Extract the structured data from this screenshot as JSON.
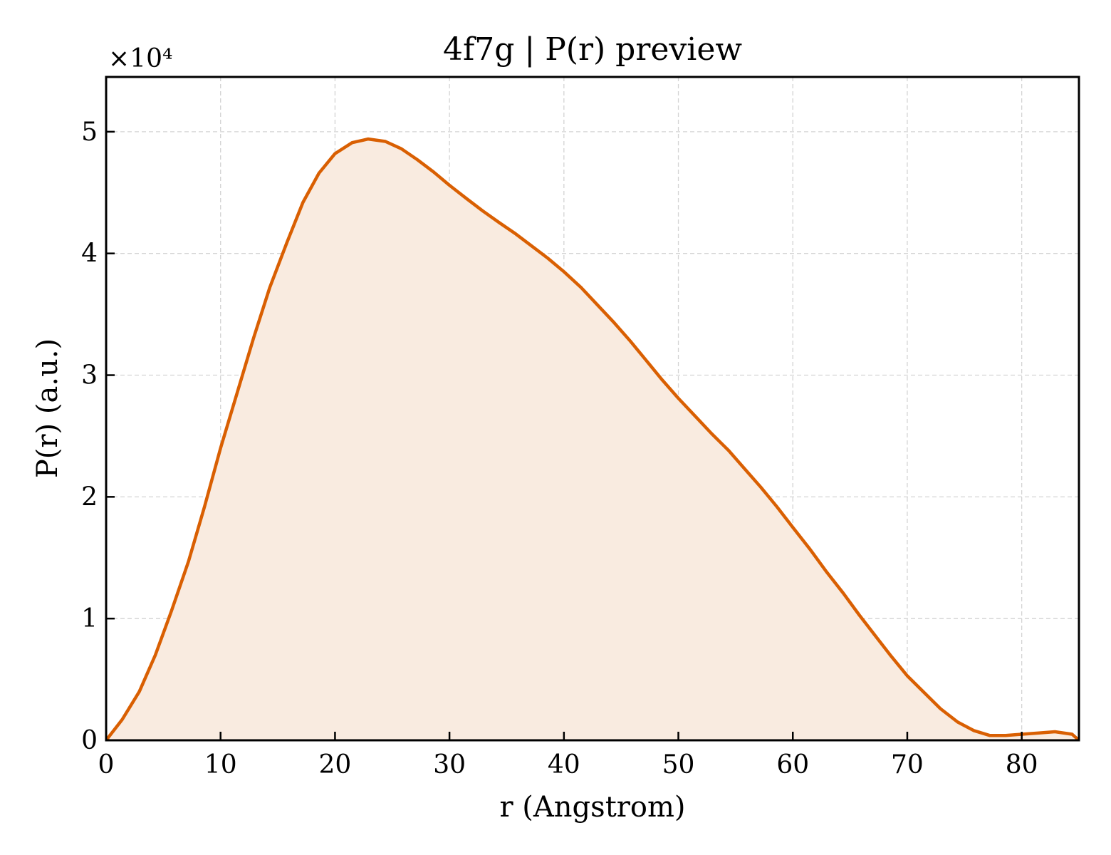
{
  "chart_data": {
    "type": "area",
    "title": "4f7g | P(r) preview",
    "xlabel": "r (Angstrom)",
    "ylabel": "P(r) (a.u.)",
    "y_multiplier": "×10⁴",
    "xlim": [
      0,
      85
    ],
    "ylim": [
      0,
      5.45
    ],
    "x_ticks": [
      0,
      10,
      20,
      30,
      40,
      50,
      60,
      70,
      80
    ],
    "y_ticks": [
      0,
      1,
      2,
      3,
      4,
      5
    ],
    "grid": true,
    "line_color": "#d95f02",
    "fill_color": "#f9ebe0",
    "series": [
      {
        "x": [
          0,
          1.4,
          2.9,
          4.3,
          5.7,
          7.2,
          8.6,
          10.0,
          11.5,
          12.9,
          14.3,
          15.8,
          17.2,
          18.6,
          20.0,
          21.5,
          22.9,
          24.4,
          25.8,
          27.2,
          28.6,
          30.0,
          31.5,
          32.9,
          34.4,
          35.8,
          37.2,
          38.6,
          40.0,
          41.5,
          42.9,
          44.4,
          45.8,
          47.2,
          48.6,
          50.0,
          51.5,
          52.9,
          54.4,
          55.8,
          57.2,
          58.6,
          60.0,
          61.5,
          62.9,
          64.4,
          65.8,
          67.2,
          68.6,
          70.0,
          71.5,
          72.9,
          74.4,
          75.8,
          77.2,
          78.6,
          80.0,
          81.5,
          82.9,
          84.4,
          85.0
        ],
        "values": [
          0,
          0.17,
          0.4,
          0.7,
          1.06,
          1.47,
          1.92,
          2.4,
          2.87,
          3.31,
          3.72,
          4.09,
          4.42,
          4.66,
          4.82,
          4.91,
          4.94,
          4.92,
          4.86,
          4.77,
          4.67,
          4.56,
          4.45,
          4.35,
          4.25,
          4.16,
          4.06,
          3.96,
          3.85,
          3.72,
          3.58,
          3.43,
          3.28,
          3.12,
          2.96,
          2.81,
          2.66,
          2.52,
          2.38,
          2.23,
          2.08,
          1.92,
          1.75,
          1.57,
          1.39,
          1.21,
          1.03,
          0.86,
          0.69,
          0.53,
          0.39,
          0.26,
          0.15,
          0.08,
          0.04,
          0.04,
          0.05,
          0.06,
          0.07,
          0.05,
          0.0
        ]
      }
    ]
  }
}
